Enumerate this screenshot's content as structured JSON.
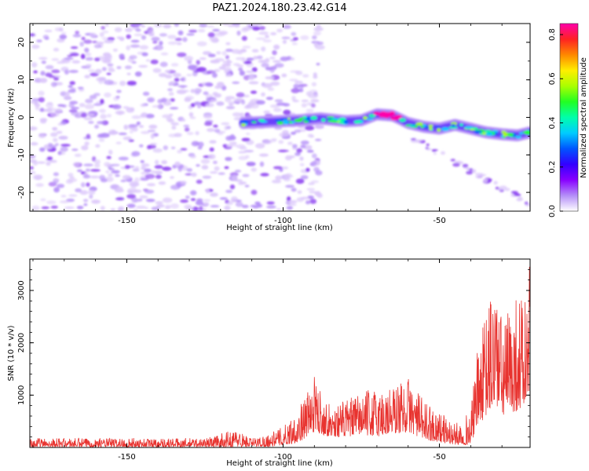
{
  "title": "PAZ1.2024.180.23.42.G14",
  "colors": {
    "snr_line": "#e8332f",
    "frame": "#000000",
    "background": "#ffffff",
    "colormap": [
      "#ffffff",
      "#b48ef8",
      "#8800ff",
      "#3300ff",
      "#0055ff",
      "#00ccff",
      "#00ffaa",
      "#22ff22",
      "#aaff00",
      "#ffee00",
      "#ff8800",
      "#ff2222",
      "#ff00aa"
    ]
  },
  "chart_data": [
    {
      "type": "heatmap",
      "title": "PAZ1.2024.180.23.42.G14",
      "xlabel": "Height of straight line (km)",
      "ylabel": "Frequency (Hz)",
      "xlim": [
        -181,
        -21
      ],
      "ylim": [
        -25,
        25
      ],
      "xticks": [
        -150,
        -100,
        -50
      ],
      "yticks": [
        -20,
        -10,
        0,
        10,
        20
      ],
      "grid": false,
      "colorbar": {
        "label": "Normalized spectral amplitude",
        "range": [
          0,
          0.85
        ],
        "ticks": [
          "0.0",
          "0.2",
          "0.4",
          "0.6",
          "0.8"
        ]
      },
      "features": {
        "noise_region": {
          "x_range": [
            -181,
            -100
          ],
          "y_range": [
            -25,
            25
          ],
          "amplitude": 0.1
        },
        "signal_ridge": {
          "x": [
            -113,
            -105,
            -95,
            -88,
            -80,
            -75,
            -70,
            -65,
            -60,
            -55,
            -50,
            -45,
            -40,
            -35,
            -30,
            -25,
            -21
          ],
          "y": [
            -1.5,
            -1.2,
            -0.8,
            -0.3,
            -1.0,
            -0.8,
            0.8,
            0.5,
            -1.5,
            -2.5,
            -3.0,
            -2.0,
            -3.0,
            -4.0,
            -4.5,
            -4.8,
            -4.0
          ],
          "peak_amplitude": 0.85,
          "peak_at": [
            -67,
            0.8
          ]
        },
        "secondary_branch": {
          "x": [
            -60,
            -21
          ],
          "y": [
            -5,
            -23
          ],
          "amplitude": 0.15
        }
      }
    },
    {
      "type": "line",
      "title": "",
      "xlabel": "Height of straight line (km)",
      "ylabel": "SNR (10 * v/v)",
      "xlim": [
        -181,
        -21
      ],
      "ylim": [
        0,
        3600
      ],
      "xticks": [
        -150,
        -100,
        -50
      ],
      "yticks": [
        1000,
        2000,
        3000
      ],
      "grid": false,
      "envelope": {
        "x": [
          -181,
          -125,
          -115,
          -110,
          -105,
          -100,
          -95,
          -90,
          -85,
          -80,
          -75,
          -70,
          -65,
          -60,
          -55,
          -50,
          -45,
          -40,
          -38,
          -35,
          -32,
          -30,
          -25,
          -22,
          -21
        ],
        "base": [
          10,
          10,
          10,
          15,
          15,
          40,
          100,
          300,
          200,
          200,
          250,
          200,
          250,
          300,
          150,
          100,
          50,
          50,
          400,
          600,
          800,
          600,
          700,
          800,
          900
        ],
        "peak": [
          180,
          180,
          350,
          180,
          250,
          400,
          750,
          1350,
          800,
          900,
          1050,
          1150,
          1200,
          1350,
          900,
          700,
          450,
          700,
          1800,
          2600,
          3450,
          2400,
          3000,
          2900,
          3600
        ]
      }
    }
  ]
}
